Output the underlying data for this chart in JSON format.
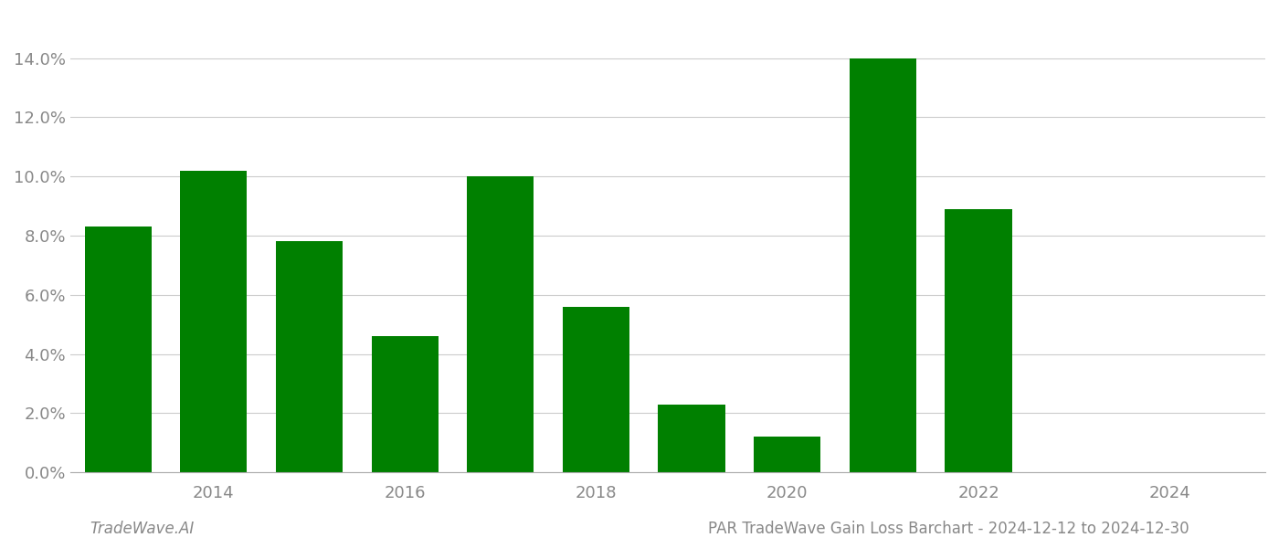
{
  "years": [
    2013,
    2014,
    2015,
    2016,
    2017,
    2018,
    2019,
    2020,
    2021,
    2022
  ],
  "values": [
    0.083,
    0.102,
    0.078,
    0.046,
    0.1,
    0.056,
    0.023,
    0.012,
    0.14,
    0.089
  ],
  "bar_color": "#008000",
  "title": "PAR TradeWave Gain Loss Barchart - 2024-12-12 to 2024-12-30",
  "watermark": "TradeWave.AI",
  "ylim": [
    0,
    0.155
  ],
  "yticks": [
    0.0,
    0.02,
    0.04,
    0.06,
    0.08,
    0.1,
    0.12,
    0.14
  ],
  "xticks": [
    2014,
    2016,
    2018,
    2020,
    2022,
    2024
  ],
  "xlim": [
    2012.5,
    2025.0
  ],
  "background_color": "#ffffff",
  "grid_color": "#cccccc",
  "bar_width": 0.7,
  "title_fontsize": 12,
  "tick_fontsize": 13,
  "watermark_fontsize": 12
}
